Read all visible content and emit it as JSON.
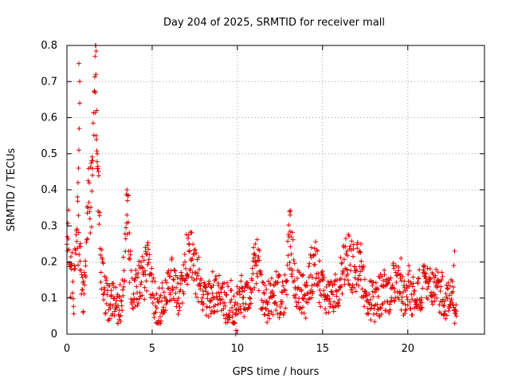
{
  "chart_data": {
    "type": "scatter",
    "title": "Day 204 of 2025, SRMTID for receiver mall",
    "xlabel": "GPS time / hours",
    "ylabel": "SRMTID / TECUs",
    "xlim": [
      0,
      24.5
    ],
    "ylim": [
      0,
      0.8
    ],
    "xticks": [
      0,
      5,
      10,
      15,
      20
    ],
    "yticks": [
      0,
      0.1,
      0.2,
      0.3,
      0.4,
      0.5,
      0.6,
      0.7,
      0.8
    ],
    "xtick_labels": [
      "0",
      "5",
      "10",
      "15",
      "20"
    ],
    "ytick_labels": [
      "0",
      "0.1",
      "0.2",
      "0.3",
      "0.4",
      "0.5",
      "0.6",
      "0.7",
      "0.8"
    ],
    "grid": true,
    "marker": "+",
    "color": "#e00000",
    "series": [
      {
        "name": "SRMTID",
        "anchors": [
          [
            0.0,
            0.2
          ],
          [
            0.1,
            0.28
          ],
          [
            0.2,
            0.14
          ],
          [
            0.3,
            0.18
          ],
          [
            0.4,
            0.1
          ],
          [
            0.5,
            0.22
          ],
          [
            0.6,
            0.3
          ],
          [
            0.7,
            0.26
          ],
          [
            0.8,
            0.2
          ],
          [
            0.9,
            0.12
          ],
          [
            1.0,
            0.1
          ],
          [
            1.1,
            0.15
          ],
          [
            1.2,
            0.33
          ],
          [
            1.3,
            0.4
          ],
          [
            1.4,
            0.36
          ],
          [
            1.5,
            0.45
          ],
          [
            1.6,
            0.6
          ],
          [
            1.7,
            0.77
          ],
          [
            1.75,
            0.6
          ],
          [
            1.8,
            0.45
          ],
          [
            1.9,
            0.3
          ],
          [
            2.0,
            0.2
          ],
          [
            2.2,
            0.12
          ],
          [
            2.5,
            0.08
          ],
          [
            2.8,
            0.1
          ],
          [
            3.0,
            0.07
          ],
          [
            3.2,
            0.1
          ],
          [
            3.4,
            0.2
          ],
          [
            3.5,
            0.36
          ],
          [
            3.6,
            0.3
          ],
          [
            3.7,
            0.18
          ],
          [
            3.9,
            0.12
          ],
          [
            4.2,
            0.14
          ],
          [
            4.5,
            0.16
          ],
          [
            4.8,
            0.2
          ],
          [
            5.0,
            0.14
          ],
          [
            5.2,
            0.08
          ],
          [
            5.5,
            0.07
          ],
          [
            5.8,
            0.12
          ],
          [
            6.2,
            0.16
          ],
          [
            6.5,
            0.1
          ],
          [
            6.8,
            0.14
          ],
          [
            7.0,
            0.2
          ],
          [
            7.2,
            0.24
          ],
          [
            7.5,
            0.18
          ],
          [
            7.8,
            0.14
          ],
          [
            8.0,
            0.1
          ],
          [
            8.3,
            0.09
          ],
          [
            8.6,
            0.12
          ],
          [
            9.0,
            0.1
          ],
          [
            9.3,
            0.08
          ],
          [
            9.6,
            0.1
          ],
          [
            9.9,
            0.05
          ],
          [
            10.1,
            0.12
          ],
          [
            10.4,
            0.09
          ],
          [
            10.7,
            0.1
          ],
          [
            11.0,
            0.18
          ],
          [
            11.2,
            0.22
          ],
          [
            11.4,
            0.12
          ],
          [
            11.7,
            0.09
          ],
          [
            12.0,
            0.1
          ],
          [
            12.3,
            0.12
          ],
          [
            12.6,
            0.09
          ],
          [
            12.9,
            0.15
          ],
          [
            13.1,
            0.3
          ],
          [
            13.2,
            0.22
          ],
          [
            13.4,
            0.14
          ],
          [
            13.7,
            0.12
          ],
          [
            14.0,
            0.1
          ],
          [
            14.3,
            0.16
          ],
          [
            14.6,
            0.2
          ],
          [
            14.9,
            0.12
          ],
          [
            15.2,
            0.1
          ],
          [
            15.5,
            0.09
          ],
          [
            15.8,
            0.12
          ],
          [
            16.2,
            0.18
          ],
          [
            16.5,
            0.22
          ],
          [
            16.8,
            0.18
          ],
          [
            17.1,
            0.2
          ],
          [
            17.4,
            0.14
          ],
          [
            17.7,
            0.1
          ],
          [
            18.0,
            0.09
          ],
          [
            18.3,
            0.1
          ],
          [
            18.6,
            0.12
          ],
          [
            18.9,
            0.11
          ],
          [
            19.2,
            0.14
          ],
          [
            19.5,
            0.12
          ],
          [
            19.8,
            0.1
          ],
          [
            20.1,
            0.13
          ],
          [
            20.4,
            0.09
          ],
          [
            20.7,
            0.12
          ],
          [
            21.0,
            0.14
          ],
          [
            21.3,
            0.12
          ],
          [
            21.6,
            0.15
          ],
          [
            21.9,
            0.12
          ],
          [
            22.2,
            0.1
          ],
          [
            22.5,
            0.13
          ],
          [
            22.7,
            0.09
          ],
          [
            22.8,
            0.06
          ]
        ],
        "outliers": [
          [
            0.7,
            0.75
          ],
          [
            0.75,
            0.7
          ],
          [
            0.75,
            0.64
          ],
          [
            0.72,
            0.57
          ],
          [
            0.7,
            0.51
          ],
          [
            0.68,
            0.46
          ],
          [
            0.65,
            0.42
          ],
          [
            0.62,
            0.38
          ],
          [
            1.65,
            0.77
          ],
          [
            1.7,
            0.72
          ],
          [
            1.68,
            0.67
          ],
          [
            1.75,
            0.62
          ],
          [
            1.72,
            0.55
          ],
          [
            1.78,
            0.5
          ],
          [
            1.8,
            0.46
          ],
          [
            1.45,
            0.48
          ],
          [
            1.5,
            0.44
          ],
          [
            3.55,
            0.37
          ],
          [
            3.52,
            0.33
          ],
          [
            3.6,
            0.31
          ],
          [
            13.05,
            0.34
          ],
          [
            13.1,
            0.33
          ],
          [
            13.15,
            0.27
          ],
          [
            9.9,
            0.0
          ],
          [
            9.92,
            0.01
          ],
          [
            22.75,
            0.23
          ],
          [
            22.7,
            0.19
          ],
          [
            22.85,
            0.05
          ],
          [
            0.95,
            0.06
          ],
          [
            3.0,
            0.03
          ],
          [
            3.1,
            0.05
          ],
          [
            17.25,
            0.25
          ],
          [
            16.45,
            0.23
          ],
          [
            14.35,
            0.24
          ],
          [
            11.05,
            0.25
          ],
          [
            10.95,
            0.24
          ],
          [
            7.15,
            0.25
          ],
          [
            4.6,
            0.24
          ],
          [
            19.6,
            0.21
          ],
          [
            21.0,
            0.19
          ]
        ],
        "jitter": 0.045,
        "points_per_hour": 52,
        "x_start": 0.0,
        "x_end": 22.85,
        "seed": 204
      }
    ]
  }
}
